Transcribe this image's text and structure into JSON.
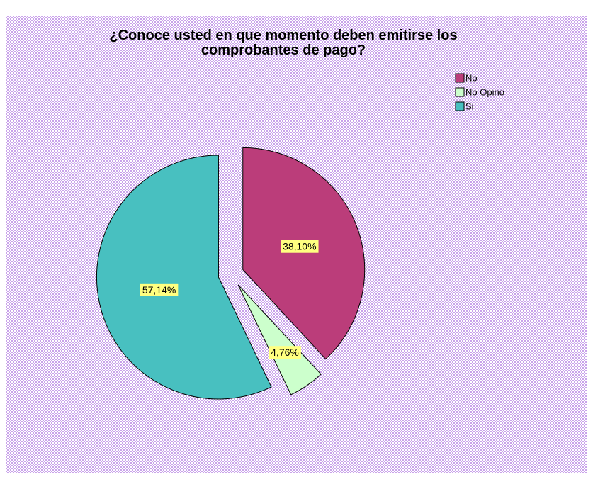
{
  "chart_data": {
    "type": "pie",
    "title": "¿Conoce usted en que momento deben emitirse los comprobantes de pago?",
    "categories": [
      "No",
      "No Opino",
      "Si"
    ],
    "values": [
      38.1,
      4.76,
      57.14
    ],
    "value_labels": [
      "38,10%",
      "4,76%",
      "57,14%"
    ],
    "colors": [
      "#bb3d7a",
      "#ccffcc",
      "#48c0c0"
    ],
    "legend": "top-right"
  }
}
